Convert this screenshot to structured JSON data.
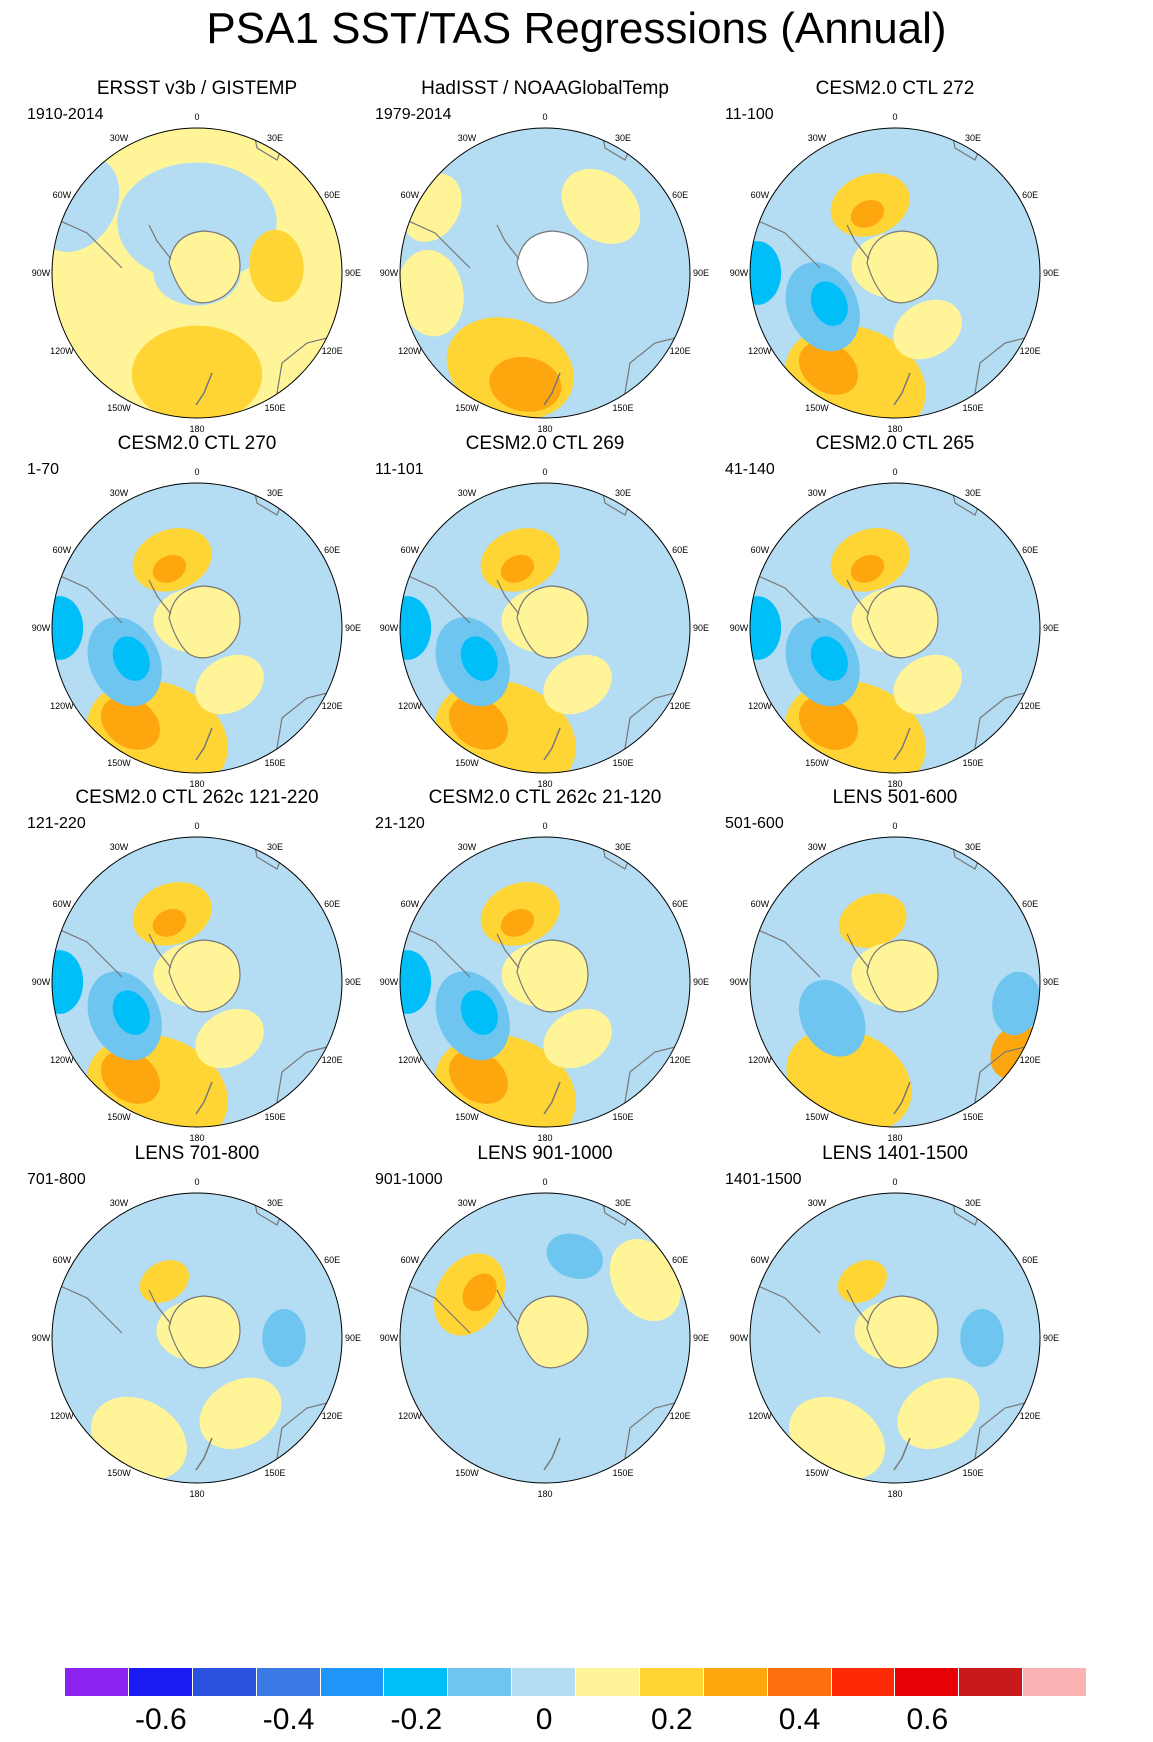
{
  "title": "PSA1 SST/TAS Regressions (Annual)",
  "longitude_labels": [
    "0",
    "30E",
    "60E",
    "90E",
    "120E",
    "150E",
    "180",
    "150W",
    "120W",
    "90W",
    "60W",
    "30W"
  ],
  "panels": [
    {
      "title": "ERSST v3b / GISTEMP",
      "period": "1910-2014",
      "style": "obs1"
    },
    {
      "title": "HadISST / NOAAGlobalTemp",
      "period": "1979-2014",
      "style": "obs2"
    },
    {
      "title": "CESM2.0 CTL 272",
      "period": "11-100",
      "style": "strong"
    },
    {
      "title": "CESM2.0 CTL 270",
      "period": "1-70",
      "style": "strong"
    },
    {
      "title": "CESM2.0 CTL 269",
      "period": "11-101",
      "style": "strong"
    },
    {
      "title": "CESM2.0 CTL 265",
      "period": "41-140",
      "style": "strong"
    },
    {
      "title": "CESM2.0 CTL 262c 121-220",
      "period": "121-220",
      "style": "strong"
    },
    {
      "title": "CESM2.0 CTL 262c 21-120",
      "period": "21-120",
      "style": "strong"
    },
    {
      "title": "LENS 501-600",
      "period": "501-600",
      "style": "medium"
    },
    {
      "title": "LENS 701-800",
      "period": "701-800",
      "style": "weak"
    },
    {
      "title": "LENS 901-1000",
      "period": "901-1000",
      "style": "weak2"
    },
    {
      "title": "LENS 1401-1500",
      "period": "1401-1500",
      "style": "weak"
    }
  ],
  "colorbar": {
    "colors": [
      "#8a22f0",
      "#1a1af2",
      "#2a52dc",
      "#3a7ae6",
      "#1e96f8",
      "#00bff8",
      "#6ec6f0",
      "#b4dcf2",
      "#fff598",
      "#fed535",
      "#fea60d",
      "#fd7010",
      "#fe2a05",
      "#e80206",
      "#c81a1a",
      "#fcb2b2"
    ],
    "labels": [
      "-0.6",
      "-0.4",
      "-0.2",
      "0",
      "0.2",
      "0.4",
      "0.6"
    ]
  }
}
